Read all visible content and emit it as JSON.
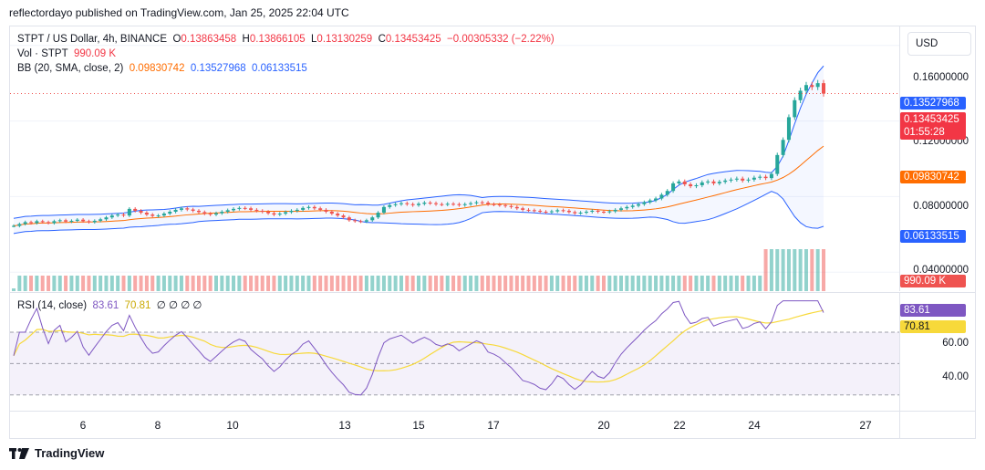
{
  "publish_line": "reflectordayo published on TradingView.com, Jan 25, 2025 22:04 UTC",
  "legend": {
    "symbol": "STPT / US Dollar, 4h, BINANCE",
    "o_label": "O",
    "o_value": "0.13863458",
    "h_label": "H",
    "h_value": "0.13866105",
    "l_label": "L",
    "l_value": "0.13130259",
    "c_label": "C",
    "c_value": "0.13453425",
    "change": "−0.00305332 (−2.22%)",
    "vol_label": "Vol · STPT",
    "vol_value": "990.09 K",
    "bb_label": "BB (20, SMA, close, 2)",
    "bb_basis": "0.09830742",
    "bb_upper": "0.13527968",
    "bb_lower": "0.06133515"
  },
  "rsi_legend": {
    "label": "RSI (14, close)",
    "rsi": "83.61",
    "ma": "70.81",
    "extra": "∅ ∅ ∅ ∅"
  },
  "currency_button": "USD",
  "price_ticks": [
    "0.16000000",
    "0.12000000",
    "0.08000000",
    "0.04000000"
  ],
  "price_tags": {
    "upper": "0.13527968",
    "close": "0.13453425",
    "countdown": "01:55:28",
    "basis": "0.09830742",
    "lower": "0.06133515",
    "volume": "990.09 K"
  },
  "rsi_ticks": [
    "60.00",
    "40.00"
  ],
  "rsi_tags": {
    "rsi": "83.61",
    "ma": "70.81"
  },
  "time_labels": [
    "6",
    "8",
    "10",
    "13",
    "15",
    "17",
    "20",
    "22",
    "24",
    "27"
  ],
  "brand": "TradingView",
  "colors": {
    "up": "#26a69a",
    "down": "#ef5350",
    "bb_band": "#2962ff",
    "bb_basis": "#ff6d00",
    "rsi_line": "#7e57c2",
    "rsi_ma": "#f7d93a",
    "rsi_band_fill": "#ede7f6"
  },
  "chart_data": [
    {
      "type": "candlestick",
      "title": "STPT / US Dollar, 4h, BINANCE",
      "x_dates": [
        "6",
        "8",
        "10",
        "13",
        "15",
        "17",
        "20",
        "22",
        "24",
        "27"
      ],
      "ylim": [
        0.03,
        0.17
      ],
      "approx_close_series": [
        0.0645,
        0.0655,
        0.0665,
        0.066,
        0.067,
        0.0665,
        0.066,
        0.067,
        0.0675,
        0.0668,
        0.0672,
        0.0678,
        0.067,
        0.0665,
        0.0672,
        0.068,
        0.069,
        0.07,
        0.0705,
        0.07,
        0.0735,
        0.0725,
        0.0715,
        0.0705,
        0.0698,
        0.07,
        0.071,
        0.072,
        0.073,
        0.0738,
        0.0732,
        0.0725,
        0.0718,
        0.071,
        0.0705,
        0.0712,
        0.072,
        0.0728,
        0.0735,
        0.074,
        0.0738,
        0.073,
        0.0725,
        0.072,
        0.0712,
        0.0705,
        0.071,
        0.0718,
        0.0725,
        0.073,
        0.074,
        0.0745,
        0.0738,
        0.073,
        0.072,
        0.071,
        0.07,
        0.069,
        0.0675,
        0.067,
        0.0668,
        0.0675,
        0.069,
        0.0715,
        0.0745,
        0.0755,
        0.076,
        0.0765,
        0.076,
        0.0755,
        0.0762,
        0.0768,
        0.0765,
        0.076,
        0.0758,
        0.0762,
        0.076,
        0.0755,
        0.076,
        0.0765,
        0.077,
        0.0768,
        0.076,
        0.0758,
        0.0755,
        0.075,
        0.0745,
        0.0738,
        0.073,
        0.0728,
        0.0725,
        0.072,
        0.0718,
        0.0722,
        0.0728,
        0.0725,
        0.0718,
        0.0712,
        0.0715,
        0.072,
        0.0725,
        0.072,
        0.0718,
        0.0722,
        0.073,
        0.0738,
        0.0745,
        0.0752,
        0.076,
        0.077,
        0.078,
        0.079,
        0.081,
        0.083,
        0.087,
        0.088,
        0.0865,
        0.0855,
        0.086,
        0.0875,
        0.088,
        0.087,
        0.0878,
        0.0885,
        0.089,
        0.0895,
        0.0885,
        0.089,
        0.09,
        0.0905,
        0.0898,
        0.092,
        0.102,
        0.11,
        0.122,
        0.131,
        0.136,
        0.139,
        0.138,
        0.14,
        0.1345
      ],
      "bollinger": {
        "basis": 0.09830742,
        "upper": 0.13527968,
        "lower": 0.06133515
      }
    },
    {
      "type": "line",
      "title": "RSI (14, close)",
      "ylim": [
        20,
        95
      ],
      "bands": [
        70,
        50,
        30
      ],
      "rsi_value": 83.61,
      "ma_value": 70.81
    }
  ]
}
